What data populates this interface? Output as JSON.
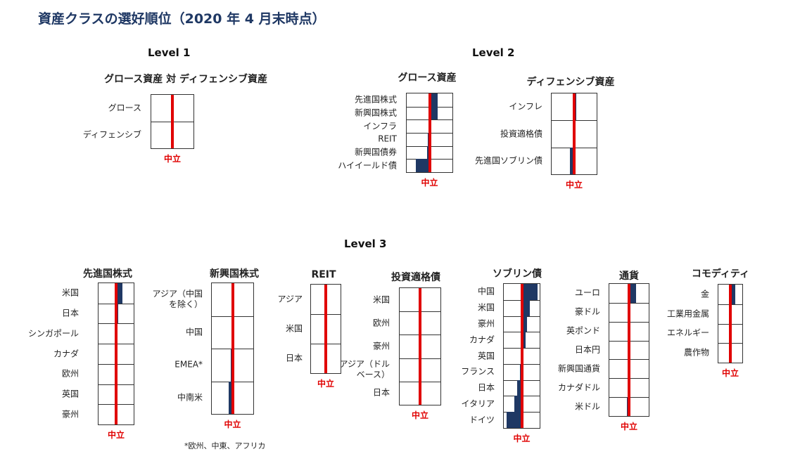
{
  "title": "資産クラスの選好順位（2020 年 4 月末時点）",
  "levels": {
    "level1": "Level 1",
    "level2": "Level 2",
    "level3": "Level 3"
  },
  "footnote": "*欧州、中東、アフリカ",
  "colors": {
    "title": "#1f3864",
    "bar": "#1f3864",
    "neutral": "#e00000",
    "neutral_label": "#e00000"
  },
  "chart_data": [
    {
      "type": "bar",
      "orientation": "horizontal",
      "title": "グロース資産 対 ディフェンシブ資産",
      "neutral_label": "中立",
      "xlim": [
        -1,
        1
      ],
      "categories": [
        "グロース",
        "ディフェンシブ"
      ],
      "values": [
        0,
        0
      ]
    },
    {
      "type": "bar",
      "orientation": "horizontal",
      "title": "グロース資産",
      "neutral_label": "中立",
      "xlim": [
        -1,
        1
      ],
      "categories": [
        "先進国株式",
        "新興国株式",
        "インフラ",
        "REIT",
        "新興国債券",
        "ハイイールド債"
      ],
      "values": [
        0.35,
        0.35,
        0.08,
        -0.08,
        -0.12,
        -0.6
      ]
    },
    {
      "type": "bar",
      "orientation": "horizontal",
      "title": "ディフェンシブ資産",
      "neutral_label": "中立",
      "xlim": [
        -1,
        1
      ],
      "categories": [
        "インフレ",
        "投資適格債",
        "先進国ソブリン債"
      ],
      "values": [
        0.1,
        0,
        -0.2
      ]
    },
    {
      "type": "bar",
      "orientation": "horizontal",
      "title": "先進国株式",
      "neutral_label": "中立",
      "xlim": [
        -1,
        1
      ],
      "categories": [
        "米国",
        "日本",
        "シンガポール",
        "カナダ",
        "欧州",
        "英国",
        "豪州"
      ],
      "values": [
        0.35,
        0.1,
        0,
        0,
        -0.05,
        -0.05,
        -0.05
      ]
    },
    {
      "type": "bar",
      "orientation": "horizontal",
      "title": "新興国株式",
      "neutral_label": "中立",
      "xlim": [
        -1,
        1
      ],
      "categories": [
        "アジア（中国\nを除く）",
        "中国",
        "EMEA*",
        "中南米"
      ],
      "values": [
        0.1,
        0.05,
        -0.1,
        -0.2
      ]
    },
    {
      "type": "bar",
      "orientation": "horizontal",
      "title": "REIT",
      "neutral_label": "中立",
      "xlim": [
        -1,
        1
      ],
      "categories": [
        "アジア",
        "米国",
        "日本"
      ],
      "values": [
        0,
        0,
        -0.1
      ]
    },
    {
      "type": "bar",
      "orientation": "horizontal",
      "title": "投資適格債",
      "neutral_label": "中立",
      "xlim": [
        -1,
        1
      ],
      "categories": [
        "米国",
        "欧州",
        "豪州",
        "アジア（ドル\nベース）",
        "日本"
      ],
      "values": [
        0.08,
        0,
        0,
        0,
        -0.08
      ]
    },
    {
      "type": "bar",
      "orientation": "horizontal",
      "title": "ソブリン債",
      "neutral_label": "中立",
      "xlim": [
        -1,
        1
      ],
      "categories": [
        "中国",
        "米国",
        "豪州",
        "カナダ",
        "英国",
        "フランス",
        "日本",
        "イタリア",
        "ドイツ"
      ],
      "values": [
        0.9,
        0.45,
        0.3,
        0.2,
        0.1,
        -0.1,
        -0.25,
        -0.4,
        -0.85
      ]
    },
    {
      "type": "bar",
      "orientation": "horizontal",
      "title": "通貨",
      "neutral_label": "中立",
      "xlim": [
        -1,
        1
      ],
      "categories": [
        "ユーロ",
        "豪ドル",
        "英ポンド",
        "日本円",
        "新興国通貨",
        "カナダドル",
        "米ドル"
      ],
      "values": [
        0.35,
        0,
        0,
        0,
        0,
        -0.08,
        -0.1
      ]
    },
    {
      "type": "bar",
      "orientation": "horizontal",
      "title": "コモディティ",
      "neutral_label": "中立",
      "xlim": [
        -1,
        1
      ],
      "categories": [
        "金",
        "工業用金属",
        "エネルギー",
        "農作物"
      ],
      "values": [
        0.4,
        0,
        0,
        0
      ]
    }
  ]
}
